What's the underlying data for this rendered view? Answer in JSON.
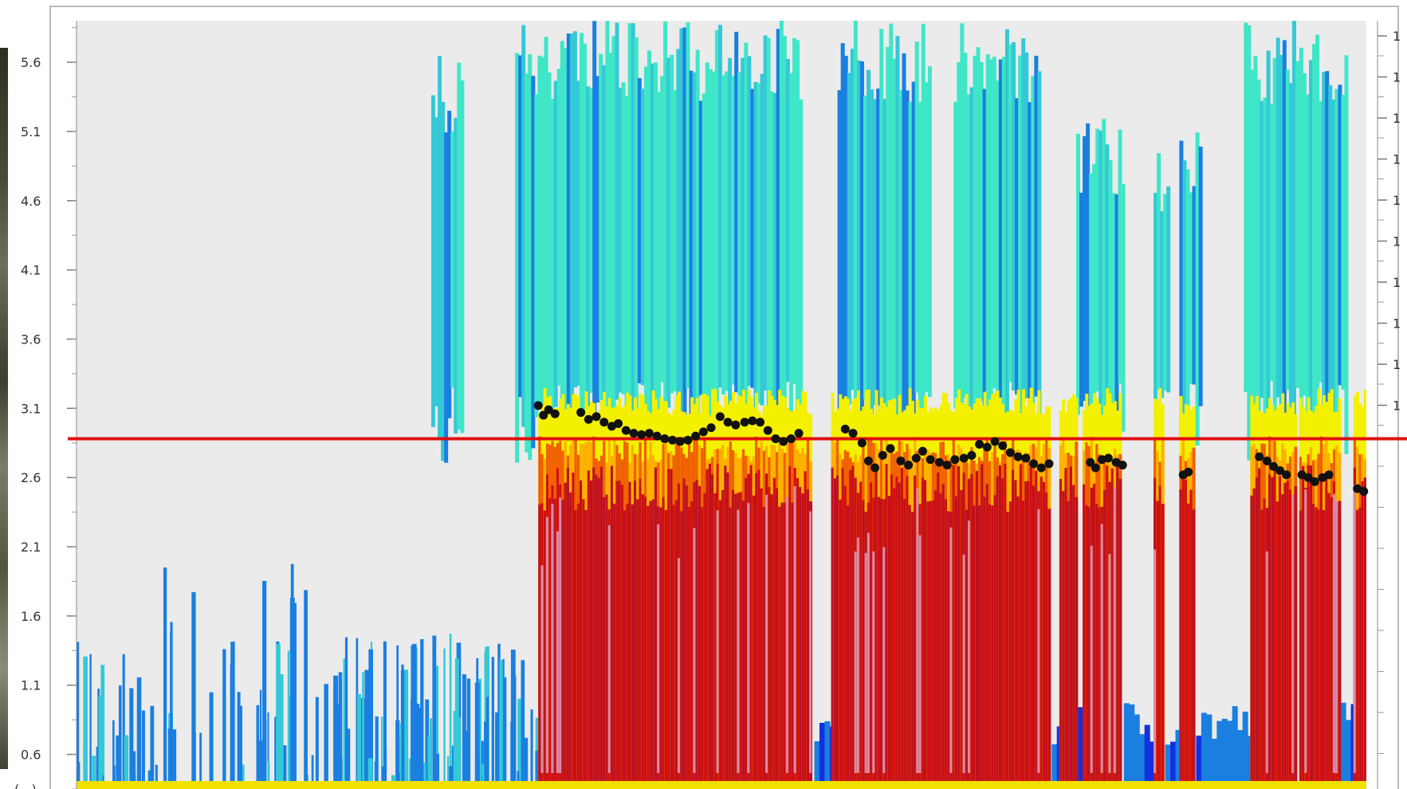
{
  "chart_data": {
    "type": "heatmap",
    "title": "",
    "xlabel": "",
    "ylabel": "",
    "y_axis_label_fragment": "(...)",
    "ylim": [
      0.35,
      5.9
    ],
    "yticks": [
      "5.6",
      "5.1",
      "4.6",
      "4.1",
      "3.6",
      "3.1",
      "2.6",
      "2.1",
      "1.6",
      "1.1",
      "0.6"
    ],
    "right_tick_labels": [
      "1",
      "1",
      "1",
      "1",
      "1",
      "1",
      "1",
      "1",
      "1",
      "1"
    ],
    "x_range": [
      0,
      1
    ],
    "grid": false,
    "colorscale": [
      "#1a7fe0",
      "#35c8d6",
      "#3fe6c8",
      "#f3f000",
      "#ffb000",
      "#f06000",
      "#d01010",
      "#c01020",
      "#d88aa8"
    ],
    "background_color": "#ebebeb",
    "reference_line": {
      "y": 2.88,
      "color": "#e01010"
    },
    "black_dot_series": [
      {
        "x": 0.358,
        "y": 3.12
      },
      {
        "x": 0.362,
        "y": 3.05
      },
      {
        "x": 0.366,
        "y": 3.09
      },
      {
        "x": 0.371,
        "y": 3.06
      },
      {
        "x": 0.391,
        "y": 3.07
      },
      {
        "x": 0.397,
        "y": 3.02
      },
      {
        "x": 0.403,
        "y": 3.04
      },
      {
        "x": 0.409,
        "y": 3.0
      },
      {
        "x": 0.415,
        "y": 2.97
      },
      {
        "x": 0.42,
        "y": 2.99
      },
      {
        "x": 0.426,
        "y": 2.94
      },
      {
        "x": 0.432,
        "y": 2.92
      },
      {
        "x": 0.438,
        "y": 2.91
      },
      {
        "x": 0.444,
        "y": 2.92
      },
      {
        "x": 0.45,
        "y": 2.9
      },
      {
        "x": 0.456,
        "y": 2.88
      },
      {
        "x": 0.462,
        "y": 2.87
      },
      {
        "x": 0.468,
        "y": 2.86
      },
      {
        "x": 0.474,
        "y": 2.87
      },
      {
        "x": 0.48,
        "y": 2.9
      },
      {
        "x": 0.486,
        "y": 2.93
      },
      {
        "x": 0.492,
        "y": 2.96
      },
      {
        "x": 0.499,
        "y": 3.04
      },
      {
        "x": 0.505,
        "y": 3.0
      },
      {
        "x": 0.511,
        "y": 2.98
      },
      {
        "x": 0.518,
        "y": 3.0
      },
      {
        "x": 0.524,
        "y": 3.01
      },
      {
        "x": 0.53,
        "y": 3.0
      },
      {
        "x": 0.536,
        "y": 2.94
      },
      {
        "x": 0.542,
        "y": 2.88
      },
      {
        "x": 0.548,
        "y": 2.86
      },
      {
        "x": 0.554,
        "y": 2.88
      },
      {
        "x": 0.56,
        "y": 2.92
      },
      {
        "x": 0.596,
        "y": 2.95
      },
      {
        "x": 0.602,
        "y": 2.92
      },
      {
        "x": 0.609,
        "y": 2.85
      },
      {
        "x": 0.614,
        "y": 2.72
      },
      {
        "x": 0.619,
        "y": 2.67
      },
      {
        "x": 0.625,
        "y": 2.76
      },
      {
        "x": 0.631,
        "y": 2.81
      },
      {
        "x": 0.639,
        "y": 2.72
      },
      {
        "x": 0.645,
        "y": 2.69
      },
      {
        "x": 0.651,
        "y": 2.74
      },
      {
        "x": 0.656,
        "y": 2.79
      },
      {
        "x": 0.662,
        "y": 2.73
      },
      {
        "x": 0.669,
        "y": 2.71
      },
      {
        "x": 0.675,
        "y": 2.69
      },
      {
        "x": 0.681,
        "y": 2.73
      },
      {
        "x": 0.688,
        "y": 2.74
      },
      {
        "x": 0.694,
        "y": 2.76
      },
      {
        "x": 0.7,
        "y": 2.84
      },
      {
        "x": 0.706,
        "y": 2.82
      },
      {
        "x": 0.712,
        "y": 2.86
      },
      {
        "x": 0.718,
        "y": 2.83
      },
      {
        "x": 0.724,
        "y": 2.78
      },
      {
        "x": 0.73,
        "y": 2.75
      },
      {
        "x": 0.736,
        "y": 2.74
      },
      {
        "x": 0.742,
        "y": 2.7
      },
      {
        "x": 0.748,
        "y": 2.67
      },
      {
        "x": 0.754,
        "y": 2.7
      },
      {
        "x": 0.786,
        "y": 2.71
      },
      {
        "x": 0.79,
        "y": 2.67
      },
      {
        "x": 0.795,
        "y": 2.73
      },
      {
        "x": 0.8,
        "y": 2.74
      },
      {
        "x": 0.806,
        "y": 2.71
      },
      {
        "x": 0.811,
        "y": 2.69
      },
      {
        "x": 0.858,
        "y": 2.62
      },
      {
        "x": 0.862,
        "y": 2.64
      },
      {
        "x": 0.917,
        "y": 2.75
      },
      {
        "x": 0.923,
        "y": 2.72
      },
      {
        "x": 0.928,
        "y": 2.68
      },
      {
        "x": 0.933,
        "y": 2.65
      },
      {
        "x": 0.938,
        "y": 2.62
      },
      {
        "x": 0.95,
        "y": 2.62
      },
      {
        "x": 0.955,
        "y": 2.6
      },
      {
        "x": 0.96,
        "y": 2.57
      },
      {
        "x": 0.966,
        "y": 2.6
      },
      {
        "x": 0.971,
        "y": 2.62
      },
      {
        "x": 0.993,
        "y": 2.52
      },
      {
        "x": 0.998,
        "y": 2.5
      }
    ]
  }
}
